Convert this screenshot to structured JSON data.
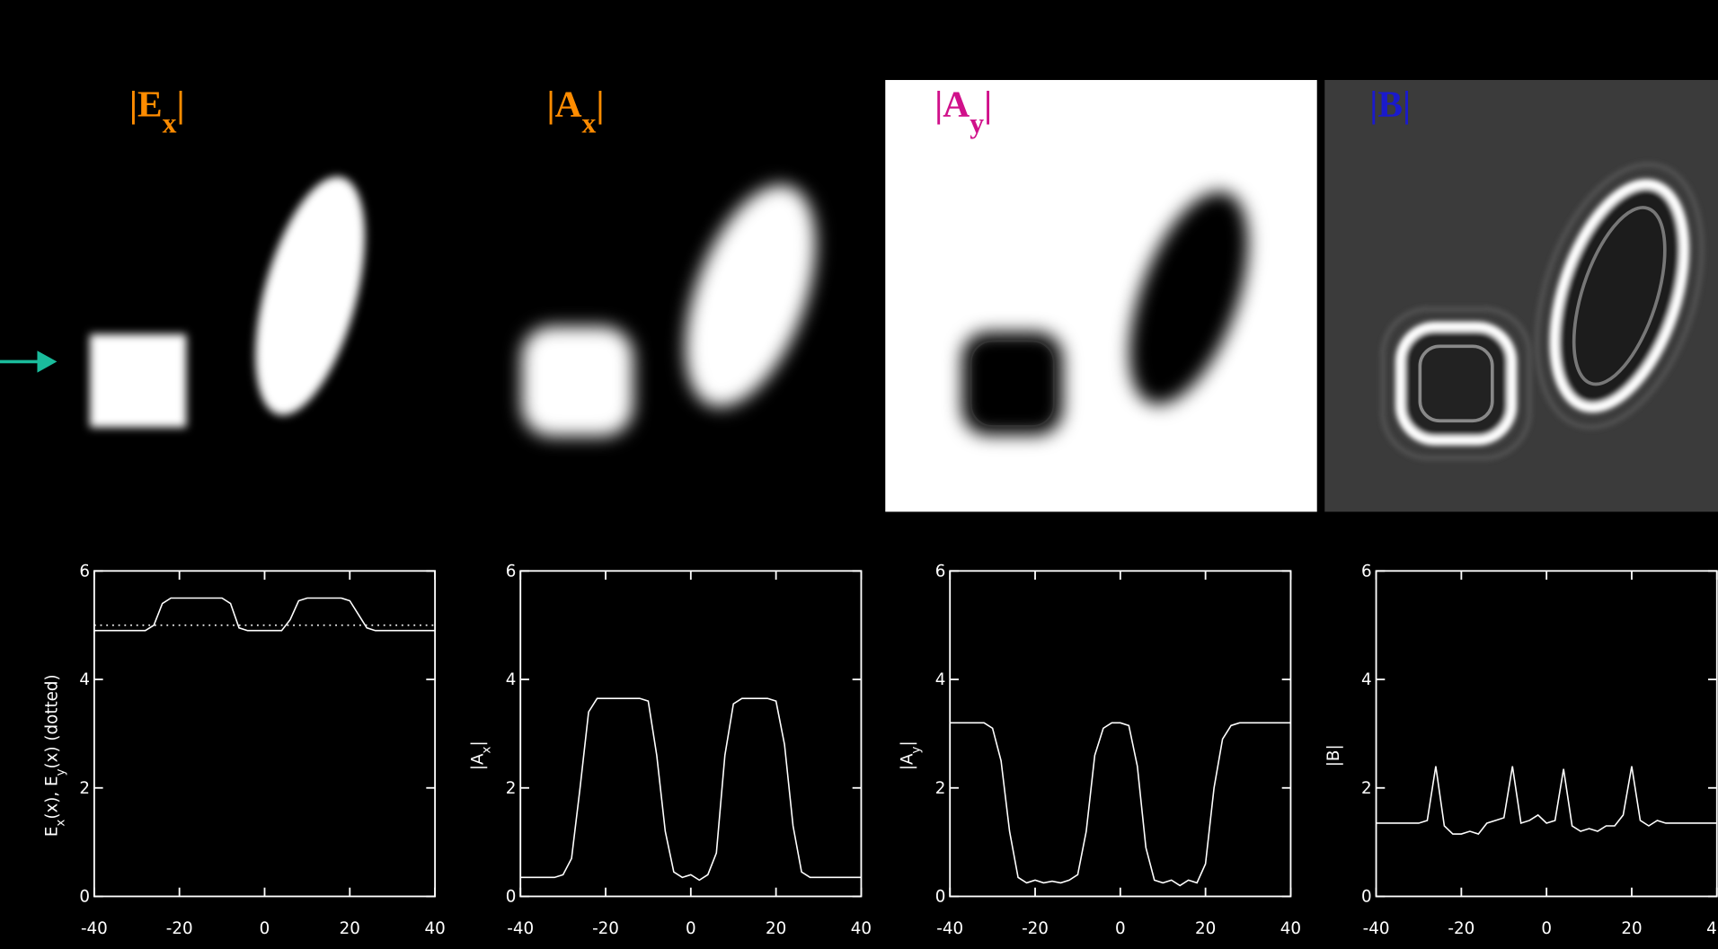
{
  "panels": [
    {
      "left": "|E",
      "sub": "x",
      "right": "|",
      "color": "#ff8c00"
    },
    {
      "left": "|A",
      "sub": "x",
      "right": "|",
      "color": "#ff8c00"
    },
    {
      "left": "|A",
      "sub": "y",
      "right": "|",
      "color": "#d0108a"
    },
    {
      "left": "|B",
      "right": "|",
      "color": "#1a1acc"
    }
  ],
  "chart_data": [
    {
      "type": "line",
      "ylabel": [
        {
          "text": "E"
        },
        {
          "text": "x",
          "sub": true
        },
        {
          "text": "(x), E"
        },
        {
          "text": "y",
          "sub": true
        },
        {
          "text": "(x)  (dotted)"
        }
      ],
      "x": [
        -40,
        -38,
        -36,
        -34,
        -32,
        -30,
        -28,
        -26,
        -24,
        -22,
        -20,
        -18,
        -16,
        -14,
        -12,
        -10,
        -8,
        -6,
        -4,
        -2,
        0,
        2,
        4,
        6,
        8,
        10,
        12,
        14,
        16,
        18,
        20,
        22,
        24,
        26,
        28,
        30,
        32,
        34,
        36,
        38,
        40
      ],
      "series": [
        {
          "color": "#ffffff",
          "values": [
            4.9,
            4.9,
            4.9,
            4.9,
            4.9,
            4.9,
            4.9,
            5.0,
            5.4,
            5.5,
            5.5,
            5.5,
            5.5,
            5.5,
            5.5,
            5.5,
            5.4,
            4.95,
            4.9,
            4.9,
            4.9,
            4.9,
            4.9,
            5.1,
            5.45,
            5.5,
            5.5,
            5.5,
            5.5,
            5.5,
            5.45,
            5.2,
            4.95,
            4.9,
            4.9,
            4.9,
            4.9,
            4.9,
            4.9,
            4.9,
            4.9
          ]
        },
        {
          "color": "#ffffff",
          "dash": "dotted",
          "values": [
            5,
            5,
            5,
            5,
            5,
            5,
            5,
            5,
            5,
            5,
            5,
            5,
            5,
            5,
            5,
            5,
            5,
            5,
            5,
            5,
            5,
            5,
            5,
            5,
            5,
            5,
            5,
            5,
            5,
            5,
            5,
            5,
            5,
            5,
            5,
            5,
            5,
            5,
            5,
            5,
            5
          ]
        }
      ],
      "xlim": [
        -40,
        40
      ],
      "ylim": [
        0,
        6
      ],
      "xticks": [
        -40,
        -20,
        0,
        20,
        40
      ],
      "yticks": [
        0,
        2,
        4,
        6
      ]
    },
    {
      "type": "line",
      "ylabel": [
        {
          "text": "|A"
        },
        {
          "text": "x",
          "sub": true
        },
        {
          "text": "|"
        }
      ],
      "x": [
        -40,
        -38,
        -36,
        -34,
        -32,
        -30,
        -28,
        -26,
        -24,
        -22,
        -20,
        -18,
        -16,
        -14,
        -12,
        -10,
        -8,
        -6,
        -4,
        -2,
        0,
        2,
        4,
        6,
        8,
        10,
        12,
        14,
        16,
        18,
        20,
        22,
        24,
        26,
        28,
        30,
        32,
        34,
        36,
        38,
        40
      ],
      "series": [
        {
          "color": "#ffffff",
          "values": [
            0.35,
            0.35,
            0.35,
            0.35,
            0.35,
            0.4,
            0.7,
            2.0,
            3.4,
            3.65,
            3.65,
            3.65,
            3.65,
            3.65,
            3.65,
            3.6,
            2.6,
            1.2,
            0.45,
            0.35,
            0.4,
            0.3,
            0.4,
            0.8,
            2.6,
            3.55,
            3.65,
            3.65,
            3.65,
            3.65,
            3.6,
            2.8,
            1.3,
            0.45,
            0.35,
            0.35,
            0.35,
            0.35,
            0.35,
            0.35,
            0.35
          ]
        }
      ],
      "xlim": [
        -40,
        40
      ],
      "ylim": [
        0,
        6
      ],
      "xticks": [
        -40,
        -20,
        0,
        20,
        40
      ],
      "yticks": [
        0,
        2,
        4,
        6
      ]
    },
    {
      "type": "line",
      "ylabel": [
        {
          "text": "|A"
        },
        {
          "text": "y",
          "sub": true
        },
        {
          "text": "|"
        }
      ],
      "x": [
        -40,
        -38,
        -36,
        -34,
        -32,
        -30,
        -28,
        -26,
        -24,
        -22,
        -20,
        -18,
        -16,
        -14,
        -12,
        -10,
        -8,
        -6,
        -4,
        -2,
        0,
        2,
        4,
        6,
        8,
        10,
        12,
        14,
        16,
        18,
        20,
        22,
        24,
        26,
        28,
        30,
        32,
        34,
        36,
        38,
        40
      ],
      "series": [
        {
          "color": "#ffffff",
          "values": [
            3.2,
            3.2,
            3.2,
            3.2,
            3.2,
            3.1,
            2.5,
            1.2,
            0.35,
            0.25,
            0.3,
            0.25,
            0.28,
            0.25,
            0.3,
            0.4,
            1.2,
            2.6,
            3.1,
            3.2,
            3.2,
            3.15,
            2.4,
            0.9,
            0.3,
            0.25,
            0.3,
            0.2,
            0.3,
            0.25,
            0.6,
            2.0,
            2.9,
            3.15,
            3.2,
            3.2,
            3.2,
            3.2,
            3.2,
            3.2,
            3.2
          ]
        }
      ],
      "xlim": [
        -40,
        40
      ],
      "ylim": [
        0,
        6
      ],
      "xticks": [
        -40,
        -20,
        0,
        20,
        40
      ],
      "yticks": [
        0,
        2,
        4,
        6
      ]
    },
    {
      "type": "line",
      "ylabel": [
        {
          "text": "|B|"
        }
      ],
      "x": [
        -40,
        -38,
        -36,
        -34,
        -32,
        -30,
        -28,
        -26,
        -24,
        -22,
        -20,
        -18,
        -16,
        -14,
        -12,
        -10,
        -8,
        -6,
        -4,
        -2,
        0,
        2,
        4,
        6,
        8,
        10,
        12,
        14,
        16,
        18,
        20,
        22,
        24,
        26,
        28,
        30,
        32,
        34,
        36,
        38,
        40
      ],
      "series": [
        {
          "color": "#ffffff",
          "values": [
            1.35,
            1.35,
            1.35,
            1.35,
            1.35,
            1.35,
            1.4,
            2.4,
            1.3,
            1.15,
            1.15,
            1.2,
            1.15,
            1.35,
            1.4,
            1.45,
            2.4,
            1.35,
            1.4,
            1.5,
            1.35,
            1.4,
            2.35,
            1.3,
            1.2,
            1.25,
            1.2,
            1.3,
            1.3,
            1.5,
            2.4,
            1.4,
            1.3,
            1.4,
            1.35,
            1.35,
            1.35,
            1.35,
            1.35,
            1.35,
            1.35
          ]
        }
      ],
      "xlim": [
        -40,
        40
      ],
      "ylim": [
        0,
        6
      ],
      "xticks": [
        -40,
        -20,
        0,
        20,
        40
      ],
      "yticks": [
        0,
        2,
        4,
        6
      ]
    }
  ]
}
